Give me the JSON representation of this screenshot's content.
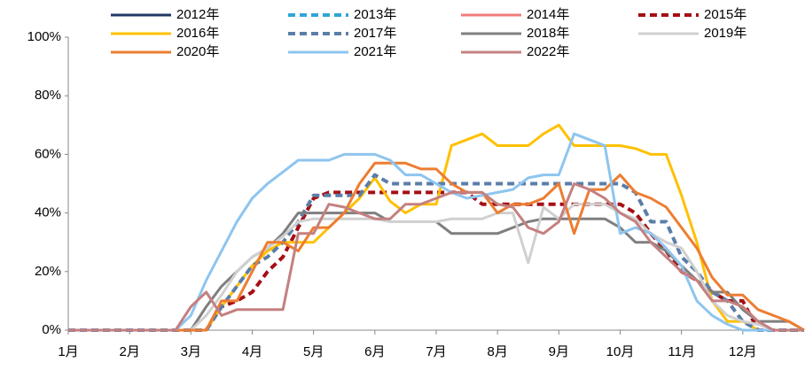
{
  "chart_data": {
    "type": "line",
    "x": [
      1,
      1.25,
      1.5,
      1.75,
      2,
      2.25,
      2.5,
      2.75,
      3,
      3.25,
      3.5,
      3.75,
      4,
      4.25,
      4.5,
      4.75,
      5,
      5.25,
      5.5,
      5.75,
      6,
      6.25,
      6.5,
      6.75,
      7,
      7.25,
      7.5,
      7.75,
      8,
      8.25,
      8.5,
      8.75,
      9,
      9.25,
      9.5,
      9.75,
      10,
      10.25,
      10.5,
      10.75,
      11,
      11.25,
      11.5,
      11.75,
      12,
      12.25,
      12.5,
      12.75,
      13
    ],
    "xlim": [
      1,
      13
    ],
    "xticks": [
      {
        "value": 1,
        "label": "1月"
      },
      {
        "value": 2,
        "label": "2月"
      },
      {
        "value": 3,
        "label": "3月"
      },
      {
        "value": 4,
        "label": "4月"
      },
      {
        "value": 5,
        "label": "5月"
      },
      {
        "value": 6,
        "label": "6月"
      },
      {
        "value": 7,
        "label": "7月"
      },
      {
        "value": 8,
        "label": "8月"
      },
      {
        "value": 9,
        "label": "9月"
      },
      {
        "value": 10,
        "label": "10月"
      },
      {
        "value": 11,
        "label": "11月"
      },
      {
        "value": 12,
        "label": "12月"
      }
    ],
    "ylim": [
      0,
      100
    ],
    "yticks": [
      {
        "value": 0,
        "label": "0%"
      },
      {
        "value": 20,
        "label": "20%"
      },
      {
        "value": 40,
        "label": "40%"
      },
      {
        "value": 60,
        "label": "60%"
      },
      {
        "value": 80,
        "label": "80%"
      },
      {
        "value": 100,
        "label": "100%"
      }
    ],
    "grid": false,
    "legend": "top",
    "series": [
      {
        "name": "2012年",
        "color": "#1f3864",
        "dashed": false,
        "values": [
          null,
          null,
          null,
          null,
          null,
          null,
          null,
          null,
          null,
          null,
          null,
          null,
          null,
          null,
          null,
          null,
          null,
          null,
          null,
          null,
          null,
          null,
          null,
          null,
          null,
          null,
          null,
          null,
          null,
          null,
          null,
          null,
          null,
          null,
          null,
          null,
          null,
          null,
          null,
          null,
          null,
          null,
          null,
          null,
          null,
          null,
          null,
          null,
          null
        ]
      },
      {
        "name": "2013年",
        "color": "#2ea6d8",
        "dashed": true,
        "values": [
          null,
          null,
          null,
          null,
          null,
          null,
          null,
          null,
          null,
          null,
          null,
          null,
          null,
          null,
          null,
          null,
          null,
          null,
          null,
          null,
          null,
          null,
          null,
          null,
          null,
          null,
          null,
          null,
          null,
          null,
          null,
          null,
          null,
          null,
          null,
          null,
          null,
          null,
          null,
          null,
          null,
          null,
          null,
          null,
          null,
          null,
          null,
          null,
          null
        ]
      },
      {
        "name": "2014年",
        "color": "#f07c7c",
        "dashed": false,
        "values": [
          null,
          null,
          null,
          null,
          null,
          null,
          null,
          null,
          null,
          null,
          null,
          null,
          null,
          null,
          null,
          null,
          null,
          null,
          null,
          null,
          null,
          null,
          null,
          null,
          null,
          null,
          null,
          null,
          null,
          null,
          null,
          null,
          null,
          null,
          null,
          null,
          null,
          null,
          null,
          null,
          null,
          null,
          null,
          null,
          null,
          null,
          null,
          null,
          null
        ]
      },
      {
        "name": "2015年",
        "color": "#a50f15",
        "dashed": true,
        "values": [
          0,
          0,
          0,
          0,
          0,
          0,
          0,
          0,
          0,
          0,
          8,
          10,
          13,
          20,
          25,
          35,
          45,
          47,
          47,
          47,
          47,
          47,
          47,
          47,
          47,
          47,
          47,
          43,
          43,
          43,
          43,
          43,
          43,
          43,
          43,
          43,
          43,
          40,
          33,
          27,
          20,
          17,
          13,
          10,
          10,
          0,
          0,
          0,
          0
        ]
      },
      {
        "name": "2016年",
        "color": "#ffc000",
        "dashed": false,
        "values": [
          0,
          0,
          0,
          0,
          0,
          0,
          0,
          0,
          0,
          0,
          8,
          15,
          22,
          27,
          30,
          30,
          30,
          35,
          40,
          45,
          52,
          44,
          40,
          43,
          43,
          63,
          65,
          67,
          63,
          63,
          63,
          67,
          70,
          63,
          63,
          63,
          63,
          62,
          60,
          60,
          46,
          30,
          10,
          3,
          3,
          0,
          0,
          0,
          0
        ]
      },
      {
        "name": "2017年",
        "color": "#5b7ea8",
        "dashed": true,
        "values": [
          0,
          0,
          0,
          0,
          0,
          0,
          0,
          0,
          0,
          0,
          8,
          15,
          22,
          25,
          30,
          37,
          46,
          46,
          46,
          46,
          53,
          50,
          50,
          50,
          50,
          50,
          50,
          50,
          50,
          50,
          50,
          50,
          50,
          50,
          50,
          50,
          50,
          47,
          37,
          37,
          25,
          20,
          13,
          10,
          3,
          0,
          0,
          0,
          0
        ]
      },
      {
        "name": "2018年",
        "color": "#7f7f7f",
        "dashed": false,
        "values": [
          0,
          0,
          0,
          0,
          0,
          0,
          0,
          0,
          0,
          8,
          15,
          20,
          25,
          28,
          33,
          40,
          40,
          40,
          40,
          40,
          40,
          37,
          37,
          37,
          37,
          33,
          33,
          33,
          33,
          35,
          37,
          38,
          38,
          38,
          38,
          38,
          35,
          30,
          30,
          27,
          22,
          17,
          13,
          13,
          7,
          3,
          3,
          3,
          0
        ]
      },
      {
        "name": "2019年",
        "color": "#d0d0d0",
        "dashed": false,
        "values": [
          0,
          0,
          0,
          0,
          0,
          0,
          0,
          0,
          0,
          5,
          12,
          20,
          25,
          28,
          32,
          37,
          38,
          38,
          38,
          38,
          38,
          37,
          37,
          37,
          37,
          38,
          38,
          38,
          40,
          40,
          23,
          42,
          38,
          43,
          43,
          43,
          40,
          38,
          33,
          30,
          28,
          20,
          10,
          5,
          3,
          2,
          0,
          0,
          0
        ]
      },
      {
        "name": "2020年",
        "color": "#ed7d31",
        "dashed": false,
        "values": [
          0,
          0,
          0,
          0,
          0,
          0,
          0,
          0,
          0,
          0,
          10,
          10,
          20,
          30,
          30,
          27,
          35,
          35,
          40,
          50,
          57,
          57,
          57,
          55,
          55,
          50,
          47,
          47,
          40,
          43,
          43,
          45,
          50,
          33,
          48,
          48,
          53,
          47,
          45,
          42,
          35,
          28,
          18,
          12,
          12,
          7,
          5,
          3,
          0
        ]
      },
      {
        "name": "2021年",
        "color": "#8ec5ef",
        "dashed": false,
        "values": [
          0,
          0,
          0,
          0,
          0,
          0,
          0,
          0,
          5,
          17,
          27,
          37,
          45,
          50,
          54,
          58,
          58,
          58,
          60,
          60,
          60,
          58,
          53,
          53,
          50,
          47,
          45,
          46,
          47,
          48,
          52,
          53,
          53,
          67,
          65,
          63,
          33,
          35,
          33,
          28,
          22,
          10,
          5,
          2,
          0,
          0,
          0,
          0,
          0
        ]
      },
      {
        "name": "2022年",
        "color": "#c48080",
        "dashed": false,
        "values": [
          0,
          0,
          0,
          0,
          0,
          0,
          0,
          0,
          8,
          13,
          5,
          7,
          7,
          7,
          7,
          33,
          33,
          43,
          42,
          40,
          38,
          38,
          43,
          43,
          45,
          47,
          47,
          47,
          43,
          42,
          35,
          33,
          37,
          50,
          48,
          45,
          40,
          37,
          30,
          25,
          20,
          17,
          10,
          10,
          8,
          3,
          0,
          0,
          0
        ]
      }
    ]
  }
}
